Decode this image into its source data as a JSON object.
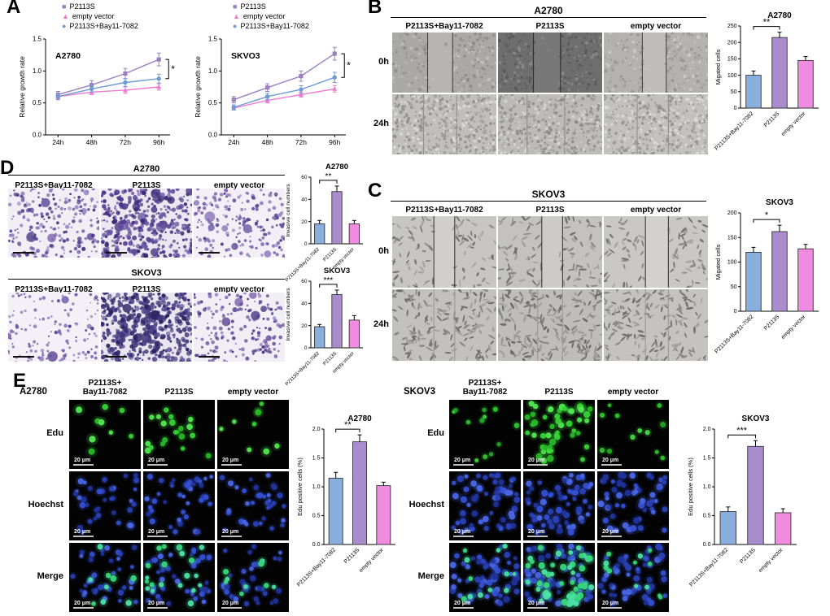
{
  "groups": [
    "P2113S+Bay11-7082",
    "P2113S",
    "empty vector"
  ],
  "colors": {
    "p2113s_line": "#9c7fc2",
    "empty_vector_line": "#f07ad0",
    "bay_line": "#6e9bd4",
    "bay_bar": "#8aaede",
    "p2113s_bar": "#a98ccd",
    "empty_vector_bar": "#ef8ce0"
  },
  "panelA": {
    "label": "A",
    "legend": [
      {
        "name": "P2113S",
        "marker": "square",
        "color": "#9c7fc2"
      },
      {
        "name": "empty vector",
        "marker": "triangle",
        "color": "#f07ad0"
      },
      {
        "name": "P2113S+Bay11-7082",
        "marker": "circle",
        "color": "#6e9bd4"
      }
    ]
  },
  "panelB": {
    "label": "B",
    "title": "A2780",
    "col_headers": [
      "P2113S+Bay11-7082",
      "P2113S",
      "empty vector"
    ],
    "row_labels": [
      "0h",
      "24h"
    ],
    "cells": [
      [
        "bw0a",
        "bw0b",
        "bw0c"
      ],
      [
        "bw24a",
        "bw24b",
        "bw24c"
      ]
    ]
  },
  "panelC": {
    "label": "C",
    "title": "SKOV3",
    "col_headers": [
      "P2113S+Bay11-7082",
      "P2113S",
      "empty vector"
    ],
    "row_labels": [
      "0h",
      "24h"
    ],
    "cells": [
      [
        "cw0a",
        "cw0b",
        "cw0c"
      ],
      [
        "cw24a",
        "cw24b",
        "cw24c"
      ]
    ]
  },
  "panelD": {
    "label": "D",
    "blocks": [
      {
        "title": "A2780",
        "col_headers": [
          "P2113S+Bay11-7082",
          "P2113S",
          "empty vector"
        ],
        "cells": [
          "twa1",
          "twa2",
          "twa3"
        ]
      },
      {
        "title": "SKOV3",
        "col_headers": [
          "P2113S+Bay11-7082",
          "P2113S",
          "empty vector"
        ],
        "cells": [
          "tws1",
          "tws2",
          "tws3"
        ]
      }
    ]
  },
  "panelE": {
    "label": "E",
    "scale_bar": "20 μm",
    "blocks": [
      {
        "cell_line": "A2780",
        "col_headers": [
          "P2113S+\nBay11-7082",
          "P2113S",
          "empty vector"
        ],
        "row_labels": [
          "Edu",
          "Hoechst",
          "Merge"
        ],
        "grid": [
          [
            "eduA1",
            "eduA2",
            "eduA3"
          ],
          [
            "hoeA1",
            "hoeA2",
            "hoeA3"
          ],
          [
            "mrgA1",
            "mrgA2",
            "mrgA3"
          ]
        ]
      },
      {
        "cell_line": "SKOV3",
        "col_headers": [
          "P2113S+\nBay11-7082",
          "P2113S",
          "empty vector"
        ],
        "row_labels": [
          "Edu",
          "Hoechst",
          "Merge"
        ],
        "grid": [
          [
            "eduS1",
            "eduS2",
            "eduS3"
          ],
          [
            "hoeS1",
            "hoeS2",
            "hoeS3"
          ],
          [
            "mrgS1",
            "mrgS2",
            "mrgS3"
          ]
        ]
      }
    ]
  },
  "chart_data": [
    {
      "id": "growth_a2780",
      "type": "line",
      "title": "A2780",
      "ylabel": "Relative growth rate",
      "x": [
        "24h",
        "48h",
        "72h",
        "96h"
      ],
      "ylim": [
        0.0,
        1.5
      ],
      "yticks": [
        "0.0",
        "0.5",
        "1.0",
        "1.5"
      ],
      "series": [
        {
          "name": "P2113S",
          "marker": "square",
          "color": "#9c7fc2",
          "values": [
            0.63,
            0.78,
            0.96,
            1.18
          ],
          "err": [
            0.05,
            0.07,
            0.08,
            0.1
          ]
        },
        {
          "name": "empty vector",
          "marker": "triangle",
          "color": "#f07ad0",
          "values": [
            0.6,
            0.67,
            0.7,
            0.75
          ],
          "err": [
            0.04,
            0.04,
            0.05,
            0.05
          ]
        },
        {
          "name": "P2113S+Bay11-7082",
          "marker": "circle",
          "color": "#6e9bd4",
          "values": [
            0.6,
            0.72,
            0.82,
            0.88
          ],
          "err": [
            0.05,
            0.05,
            0.06,
            0.07
          ]
        }
      ],
      "sig": "*"
    },
    {
      "id": "growth_skvo3",
      "type": "line",
      "title": "SKVO3",
      "ylabel": "Relative growth rate",
      "x": [
        "24h",
        "48h",
        "72h",
        "96h"
      ],
      "ylim": [
        0.0,
        1.5
      ],
      "yticks": [
        "0.0",
        "0.5",
        "1.0",
        "1.5"
      ],
      "series": [
        {
          "name": "P2113S",
          "marker": "square",
          "color": "#9c7fc2",
          "values": [
            0.55,
            0.74,
            0.92,
            1.27
          ],
          "err": [
            0.05,
            0.06,
            0.08,
            0.1
          ]
        },
        {
          "name": "empty vector",
          "marker": "triangle",
          "color": "#f07ad0",
          "values": [
            0.42,
            0.54,
            0.63,
            0.72
          ],
          "err": [
            0.03,
            0.04,
            0.04,
            0.05
          ]
        },
        {
          "name": "P2113S+Bay11-7082",
          "marker": "circle",
          "color": "#6e9bd4",
          "values": [
            0.43,
            0.6,
            0.71,
            0.9
          ],
          "err": [
            0.04,
            0.05,
            0.06,
            0.08
          ]
        }
      ],
      "sig": "*"
    },
    {
      "id": "migrate_a2780",
      "type": "bar",
      "title": "A2780",
      "ylabel": "Migated cells",
      "categories": [
        "P2113S+Bay11-7082",
        "P2113S",
        "empty vector"
      ],
      "values": [
        100,
        215,
        145
      ],
      "errors": [
        13,
        16,
        12
      ],
      "colors": [
        "#8aaede",
        "#a98ccd",
        "#ef8ce0"
      ],
      "ylim": [
        0,
        250
      ],
      "yticks": [
        0,
        50,
        100,
        150,
        200,
        250
      ],
      "sig": {
        "label": "**",
        "from": 0,
        "to": 1
      }
    },
    {
      "id": "migrate_skov3",
      "type": "bar",
      "title": "SKOV3",
      "ylabel": "Migated cells",
      "categories": [
        "P2113S+Bay11-7082",
        "P2113S",
        "empty vector"
      ],
      "values": [
        120,
        162,
        127
      ],
      "errors": [
        10,
        13,
        9
      ],
      "colors": [
        "#8aaede",
        "#a98ccd",
        "#ef8ce0"
      ],
      "ylim": [
        0,
        200
      ],
      "yticks": [
        0,
        50,
        100,
        150,
        200
      ],
      "sig": {
        "label": "*",
        "from": 0,
        "to": 1
      }
    },
    {
      "id": "invasive_a2780",
      "type": "bar",
      "title": "A2780",
      "ylabel": "Invasive cell numbers",
      "categories": [
        "P2113S+Bay11-7082",
        "P2113S",
        "empty vector"
      ],
      "values": [
        18,
        47,
        18
      ],
      "errors": [
        3,
        5,
        3
      ],
      "colors": [
        "#8aaede",
        "#a98ccd",
        "#ef8ce0"
      ],
      "ylim": [
        0,
        60
      ],
      "yticks": [
        0,
        20,
        40,
        60
      ],
      "sig": {
        "label": "**",
        "from": 0,
        "to": 1
      }
    },
    {
      "id": "invasive_skov3",
      "type": "bar",
      "title": "SKOV3",
      "ylabel": "Invasive cell numbers",
      "categories": [
        "P2113S+Bay11-7082",
        "P2113S",
        "empty vector"
      ],
      "values": [
        19,
        48,
        25
      ],
      "errors": [
        2,
        4,
        4
      ],
      "colors": [
        "#8aaede",
        "#a98ccd",
        "#ef8ce0"
      ],
      "ylim": [
        0,
        60
      ],
      "yticks": [
        0,
        20,
        40,
        60
      ],
      "sig": {
        "label": "***",
        "from": 0,
        "to": 1
      }
    },
    {
      "id": "edu_a2780",
      "type": "bar",
      "title": "A2780",
      "ylabel": "Edu positive cells (%)",
      "categories": [
        "P2113S+Bay11-7082",
        "P2113S",
        "empty vector"
      ],
      "values": [
        1.15,
        1.78,
        1.02
      ],
      "errors": [
        0.1,
        0.12,
        0.06
      ],
      "colors": [
        "#8aaede",
        "#a98ccd",
        "#ef8ce0"
      ],
      "ylim": [
        0,
        2.0
      ],
      "yticks": [
        "0.0",
        "0.5",
        "1.0",
        "1.5",
        "2.0"
      ],
      "sig": {
        "label": "**",
        "from": 0,
        "to": 1
      }
    },
    {
      "id": "edu_skov3",
      "type": "bar",
      "title": "SKOV3",
      "ylabel": "Edu positive cells (%)",
      "categories": [
        "P2113S+Bay11-7082",
        "P2113S",
        "empty vector"
      ],
      "values": [
        0.57,
        1.7,
        0.55
      ],
      "errors": [
        0.08,
        0.1,
        0.07
      ],
      "colors": [
        "#8aaede",
        "#a98ccd",
        "#ef8ce0"
      ],
      "ylim": [
        0,
        2.0
      ],
      "yticks": [
        "0.0",
        "0.5",
        "1.0",
        "1.5",
        "2.0"
      ],
      "sig": {
        "label": "***",
        "from": 0,
        "to": 1
      }
    }
  ]
}
